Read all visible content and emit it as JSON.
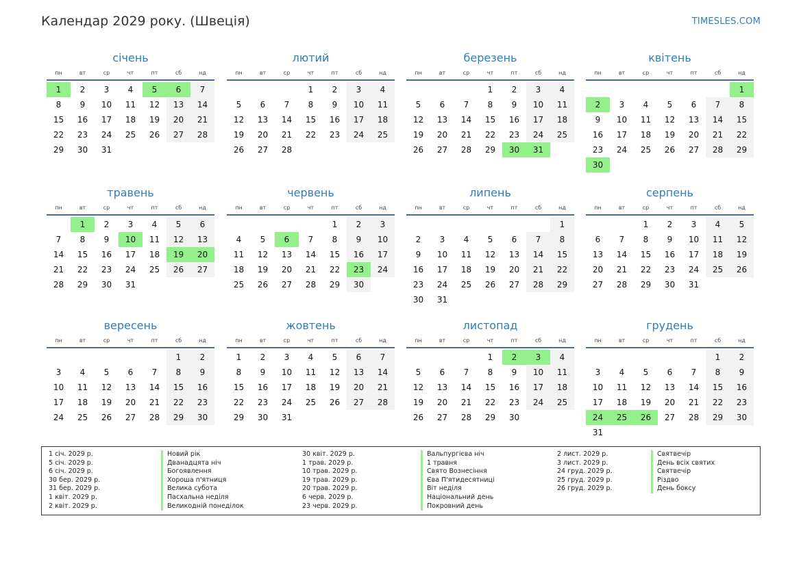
{
  "header": {
    "title": "Календар 2029 року. (Швеція)",
    "brand": "TIMESLES.COM"
  },
  "weekday_labels": [
    "пн",
    "вт",
    "ср",
    "чт",
    "пт",
    "сб",
    "нд"
  ],
  "months": [
    {
      "name": "січень",
      "start": 0,
      "days": 31,
      "holidays": [
        1,
        5,
        6
      ]
    },
    {
      "name": "лютий",
      "start": 3,
      "days": 28,
      "holidays": []
    },
    {
      "name": "березень",
      "start": 3,
      "days": 31,
      "holidays": [
        30,
        31
      ]
    },
    {
      "name": "квітень",
      "start": 6,
      "days": 30,
      "holidays": [
        1,
        2,
        30
      ]
    },
    {
      "name": "травень",
      "start": 1,
      "days": 31,
      "holidays": [
        1,
        10,
        19,
        20
      ]
    },
    {
      "name": "червень",
      "start": 4,
      "days": 30,
      "holidays": [
        6,
        23
      ]
    },
    {
      "name": "липень",
      "start": 6,
      "days": 31,
      "holidays": []
    },
    {
      "name": "серпень",
      "start": 2,
      "days": 31,
      "holidays": []
    },
    {
      "name": "вересень",
      "start": 5,
      "days": 30,
      "holidays": []
    },
    {
      "name": "жовтень",
      "start": 0,
      "days": 31,
      "holidays": []
    },
    {
      "name": "листопад",
      "start": 3,
      "days": 30,
      "holidays": [
        2,
        3
      ]
    },
    {
      "name": "грудень",
      "start": 5,
      "days": 31,
      "holidays": [
        24,
        25,
        26
      ]
    }
  ],
  "legend": [
    [
      {
        "date": "1 січ. 2029 р.",
        "name": "Новий рік"
      },
      {
        "date": "5 січ. 2029 р.",
        "name": "Дванадцята ніч"
      },
      {
        "date": "6 січ. 2029 р.",
        "name": "Богоявлення"
      },
      {
        "date": "30 бер. 2029 р.",
        "name": "Хороша п'ятниця"
      },
      {
        "date": "31 бер. 2029 р.",
        "name": "Велика субота"
      },
      {
        "date": "1 квіт. 2029 р.",
        "name": "Пасхальна неділя"
      },
      {
        "date": "2 квіт. 2029 р.",
        "name": "Великодній понеділок"
      }
    ],
    [
      {
        "date": "30 квіт. 2029 р.",
        "name": "Вальпургієва ніч"
      },
      {
        "date": "1 трав. 2029 р.",
        "name": "1 травня"
      },
      {
        "date": "10 трав. 2029 р.",
        "name": "Свято Вознесіння"
      },
      {
        "date": "19 трав. 2029 р.",
        "name": "Єва П'ятидесятниці"
      },
      {
        "date": "20 трав. 2029 р.",
        "name": "Віт неділя"
      },
      {
        "date": "6 черв. 2029 р.",
        "name": "Національний день"
      },
      {
        "date": "23 черв. 2029 р.",
        "name": "Покровний день"
      }
    ],
    [
      {
        "date": "2 лист. 2029 р.",
        "name": "Святвечір"
      },
      {
        "date": "3 лист. 2029 р.",
        "name": "День всіх святих"
      },
      {
        "date": "24 груд. 2029 р.",
        "name": "Святвечір"
      },
      {
        "date": "25 груд. 2029 р.",
        "name": "Різдво"
      },
      {
        "date": "26 груд. 2029 р.",
        "name": "День боксу"
      }
    ]
  ]
}
